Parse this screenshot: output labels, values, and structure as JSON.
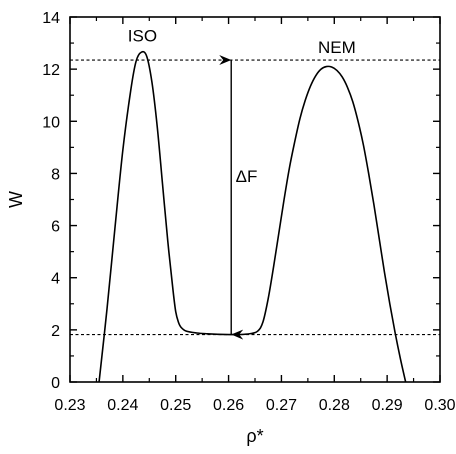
{
  "chart_data": {
    "type": "line",
    "title": "",
    "xlabel": "ρ*",
    "ylabel": "W",
    "xlim": [
      0.23,
      0.3
    ],
    "ylim": [
      0,
      14
    ],
    "x_ticks": [
      0.23,
      0.24,
      0.25,
      0.26,
      0.27,
      0.28,
      0.29,
      0.3
    ],
    "x_tick_labels": [
      "0.23",
      "0.24",
      "0.25",
      "0.26",
      "0.27",
      "0.28",
      "0.29",
      "0.30"
    ],
    "y_ticks": [
      0,
      2,
      4,
      6,
      8,
      10,
      12,
      14
    ],
    "y_tick_labels": [
      "0",
      "2",
      "4",
      "6",
      "8",
      "10",
      "12",
      "14"
    ],
    "grid": false,
    "series": [
      {
        "x": [
          0.2355,
          0.237,
          0.2385,
          0.24,
          0.2415,
          0.2425,
          0.2435,
          0.2445,
          0.2455,
          0.2465,
          0.2475,
          0.2485,
          0.2495,
          0.25,
          0.2505,
          0.251,
          0.252,
          0.254,
          0.256,
          0.258,
          0.26,
          0.262,
          0.264,
          0.2655,
          0.2665,
          0.2675,
          0.2685,
          0.2695,
          0.2705,
          0.2715,
          0.2725,
          0.2735,
          0.2745,
          0.2755,
          0.2765,
          0.2775,
          0.2785,
          0.2795,
          0.2805,
          0.2815,
          0.2825,
          0.2835,
          0.2845,
          0.2855,
          0.2865,
          0.2875,
          0.2885,
          0.2895,
          0.2905,
          0.2915,
          0.2925,
          0.2935
        ],
        "y": [
          0.0,
          2.8,
          5.9,
          8.9,
          11.2,
          12.3,
          12.65,
          12.5,
          11.5,
          9.8,
          7.6,
          5.4,
          3.5,
          2.7,
          2.3,
          2.1,
          1.95,
          1.88,
          1.85,
          1.83,
          1.82,
          1.82,
          1.85,
          1.95,
          2.3,
          3.2,
          4.4,
          5.7,
          7.0,
          8.2,
          9.2,
          10.1,
          10.8,
          11.35,
          11.75,
          12.0,
          12.1,
          12.08,
          11.95,
          11.7,
          11.3,
          10.75,
          10.0,
          9.1,
          8.0,
          6.8,
          5.5,
          4.2,
          3.0,
          1.9,
          0.9,
          0.0
        ]
      }
    ],
    "reference_lines": [
      {
        "orientation": "horizontal",
        "y": 12.35,
        "style": "dashed"
      },
      {
        "orientation": "horizontal",
        "y": 1.82,
        "style": "dashed"
      }
    ],
    "arrow": {
      "x": 0.2605,
      "y_from": 1.82,
      "y_to": 12.35,
      "style": "double-headed"
    },
    "annotations": [
      {
        "text": "ISO",
        "x": 0.2437,
        "y": 13.3
      },
      {
        "text": "NEM",
        "x": 0.2805,
        "y": 12.85
      },
      {
        "text": "ΔF",
        "x": 0.2634,
        "y": 7.9
      }
    ]
  }
}
